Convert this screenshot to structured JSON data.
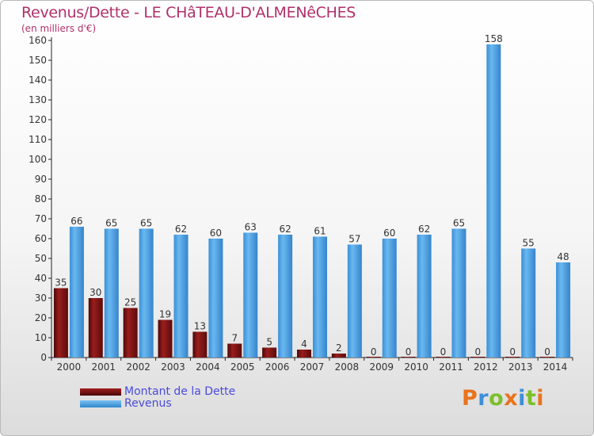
{
  "header": {
    "title": "Revenus/Dette - LE CHâTEAU-D'ALMENêCHES",
    "subtitle": "(en milliers d'€)"
  },
  "legend": {
    "items": [
      {
        "label": "Montant de la Dette",
        "color": "#7a1515"
      },
      {
        "label": "Revenus",
        "color": "#4ea5e8"
      }
    ]
  },
  "logo": {
    "text": "Proxiti",
    "letters": [
      {
        "char": "P",
        "color": "#e9731c"
      },
      {
        "char": "r",
        "color": "#3d8fd8"
      },
      {
        "char": "o",
        "color": "#7cbf2a"
      },
      {
        "char": "x",
        "color": "#e9731c"
      },
      {
        "char": "i",
        "color": "#3d8fd8"
      },
      {
        "char": "t",
        "color": "#7cbf2a"
      },
      {
        "char": "i",
        "color": "#e9731c"
      }
    ]
  },
  "chart_data": {
    "type": "bar",
    "categories": [
      "2000",
      "2001",
      "2002",
      "2003",
      "2004",
      "2005",
      "2006",
      "2007",
      "2008",
      "2009",
      "2010",
      "2011",
      "2012",
      "2013",
      "2014"
    ],
    "series": [
      {
        "name": "Montant de la Dette",
        "color": "#7a1515",
        "values": [
          35,
          30,
          25,
          19,
          13,
          7,
          5,
          4,
          2,
          0,
          0,
          0,
          0,
          0,
          0
        ]
      },
      {
        "name": "Revenus",
        "color": "#4ea5e8",
        "values": [
          66,
          65,
          65,
          62,
          60,
          63,
          62,
          61,
          57,
          60,
          62,
          65,
          158,
          55,
          48
        ]
      }
    ],
    "ylim": [
      0,
      160
    ],
    "yticks": [
      0,
      10,
      20,
      30,
      40,
      50,
      60,
      70,
      80,
      90,
      100,
      110,
      120,
      130,
      140,
      150,
      160
    ],
    "grid": false,
    "legend_position": "bottom-left",
    "xlabel": "",
    "ylabel": ""
  }
}
